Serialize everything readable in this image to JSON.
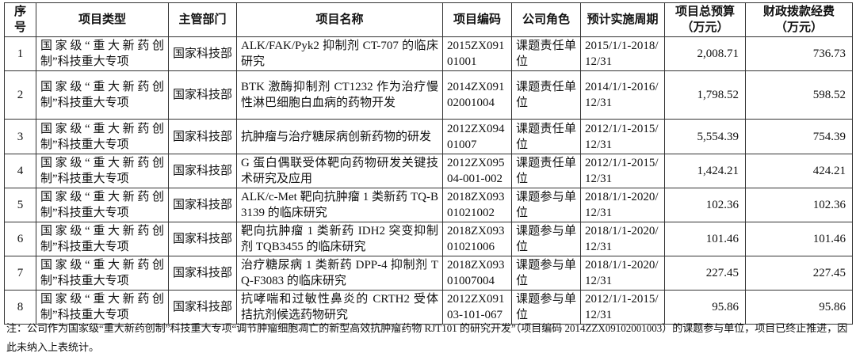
{
  "headers": [
    "序号",
    "项目类型",
    "主管部门",
    "项目名称",
    "项目编码",
    "公司角色",
    "预计实施周期",
    "项目总预算（万元）",
    "财政拨款经费（万元）"
  ],
  "header_lines": {
    "seq": [
      "序",
      "号"
    ],
    "budget": [
      "项目总预算",
      "（万元）"
    ],
    "fiscal": [
      "财政拨款经费",
      "（万元）"
    ]
  },
  "rows": [
    {
      "no": "1",
      "type": "国家级“重大新药创制”科技重大专项",
      "dept": "国家科技部",
      "name": "ALK/FAK/Pyk2 抑制剂 CT-707 的临床研究",
      "code": "2015ZX09101001",
      "role": "课题责任单位",
      "period": "2015/1/1-2018/12/31",
      "budget": "2,008.71",
      "fiscal": "736.73"
    },
    {
      "no": "2",
      "type": "国家级“重大新药创制”科技重大专项",
      "dept": "国家科技部",
      "name": "BTK 激酶抑制剂 CT1232 作为治疗慢性淋巴细胞白血病的药物开发",
      "code": "2014ZX09102001004",
      "role": "课题责任单位",
      "period": "2014/1/1-2016/12/31",
      "budget": "1,798.52",
      "fiscal": "598.52"
    },
    {
      "no": "3",
      "type": "国家级“重大新药创制”科技重大专项",
      "dept": "国家科技部",
      "name": "抗肿瘤与治疗糖尿病创新药物的研发",
      "code": "2012ZX09401007",
      "role": "课题责任单位",
      "period": "2012/1/1-2015/12/31",
      "budget": "5,554.39",
      "fiscal": "754.39"
    },
    {
      "no": "4",
      "type": "国家级“重大新药创制”科技重大专项",
      "dept": "国家科技部",
      "name": "G 蛋白偶联受体靶向药物研发关键技术研究及应用",
      "code": "2012ZX09504-001-002",
      "role": "课题责任单位",
      "period": "2012/1/1-2015/12/31",
      "budget": "1,424.21",
      "fiscal": "424.21"
    },
    {
      "no": "5",
      "type": "国家级“重大新药创制”科技重大专项",
      "dept": "国家科技部",
      "name": "ALK/c-Met 靶向抗肿瘤 1 类新药 TQ-B3139 的临床研究",
      "code": "2018ZX09301021002",
      "role": "课题参与单位",
      "period": "2018/1/1-2020/12/31",
      "budget": "102.36",
      "fiscal": "102.36"
    },
    {
      "no": "6",
      "type": "国家级“重大新药创制”科技重大专项",
      "dept": "国家科技部",
      "name": "靶向抗肿瘤 1 类新药 IDH2 突变抑制剂 TQB3455 的临床研究",
      "code": "2018ZX09301021006",
      "role": "课题参与单位",
      "period": "2018/1/1-2020/12/31",
      "budget": "101.46",
      "fiscal": "101.46"
    },
    {
      "no": "7",
      "type": "国家级“重大新药创制”科技重大专项",
      "dept": "国家科技部",
      "name": "治疗糖尿病 1 类新药 DPP-4 抑制剂 TQ-F3083 的临床研究",
      "code": "2018ZX09301007004",
      "role": "课题参与单位",
      "period": "2018/1/1-2020/12/31",
      "budget": "227.45",
      "fiscal": "227.45"
    },
    {
      "no": "8",
      "type": "国家级“重大新药创制”科技重大专项",
      "dept": "国家科技部",
      "name": "抗哮喘和过敏性鼻炎的 CRTH2 受体拮抗剂候选药物研究",
      "code": "2012ZX09103-101-067",
      "role": "课题参与单位",
      "period": "2012/1/1-2015/12/31",
      "budget": "95.86",
      "fiscal": "95.86"
    }
  ],
  "note": "注：公司作为国家级“重大新药创制”科技重大专项“调节肿瘤细胞凋亡的新型高效抗肿瘤药物 RJT101 的研究开发”（项目编码 2014ZZX09102001003）的课题参与单位，项目已终止推进，因此未纳入上表统计。"
}
